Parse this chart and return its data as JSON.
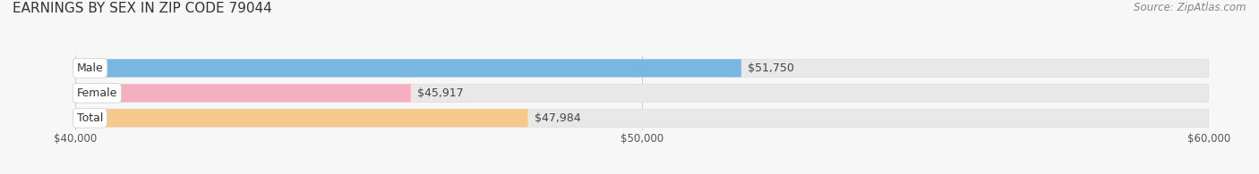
{
  "title": "EARNINGS BY SEX IN ZIP CODE 79044",
  "source": "Source: ZipAtlas.com",
  "categories": [
    "Male",
    "Female",
    "Total"
  ],
  "values": [
    51750,
    45917,
    47984
  ],
  "bar_colors": [
    "#78b8e0",
    "#f5afc0",
    "#f5c98a"
  ],
  "x_min": 40000,
  "x_max": 60000,
  "x_ticks": [
    40000,
    50000,
    60000
  ],
  "x_tick_labels": [
    "$40,000",
    "$50,000",
    "$60,000"
  ],
  "value_labels": [
    "$51,750",
    "$45,917",
    "$47,984"
  ],
  "bg_color": "#f7f7f7",
  "bar_track_color": "#e8e8e8",
  "title_fontsize": 11,
  "source_fontsize": 8.5,
  "tick_fontsize": 8.5,
  "label_fontsize": 9,
  "value_fontsize": 9,
  "figsize": [
    14.06,
    1.95
  ],
  "dpi": 100
}
